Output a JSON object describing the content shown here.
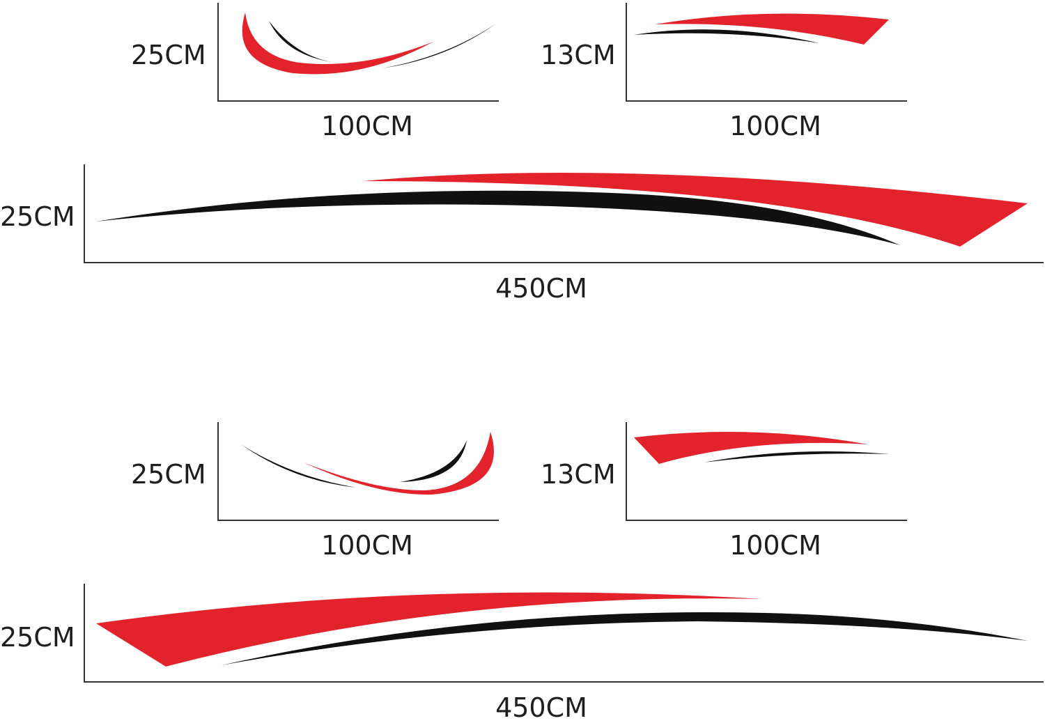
{
  "colors": {
    "stripe_primary": "#e3232c",
    "stripe_secondary": "#111111",
    "axis": "#333333"
  },
  "sets": [
    {
      "name": "upper-set",
      "small_curve": {
        "height": "25CM",
        "width": "100CM"
      },
      "small_straight": {
        "height": "13CM",
        "width": "100CM"
      },
      "long": {
        "height": "25CM",
        "width": "450CM"
      }
    },
    {
      "name": "lower-set",
      "small_curve": {
        "height": "25CM",
        "width": "100CM"
      },
      "small_straight": {
        "height": "13CM",
        "width": "100CM"
      },
      "long": {
        "height": "25CM",
        "width": "450CM"
      }
    }
  ]
}
